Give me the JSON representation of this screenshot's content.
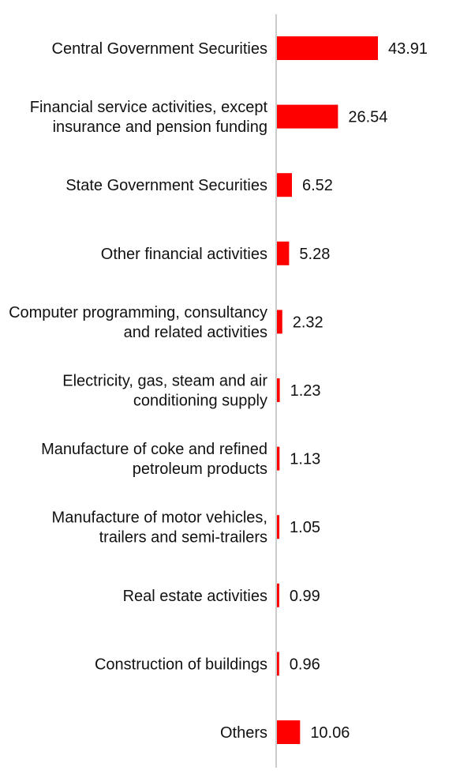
{
  "chart_data": {
    "type": "bar",
    "orientation": "horizontal",
    "categories": [
      [
        "Central Government Securities"
      ],
      [
        "Financial service activities, except",
        "insurance and pension funding"
      ],
      [
        "State Government Securities"
      ],
      [
        "Other financial activities"
      ],
      [
        "Computer programming, consultancy",
        "and related activities"
      ],
      [
        "Electricity, gas, steam and air",
        "conditioning supply"
      ],
      [
        "Manufacture of coke and refined",
        "petroleum products"
      ],
      [
        "Manufacture of motor vehicles,",
        "trailers and semi-trailers"
      ],
      [
        "Real estate activities"
      ],
      [
        "Construction of buildings"
      ],
      [
        "Others"
      ]
    ],
    "values": [
      43.91,
      26.54,
      6.52,
      5.28,
      2.32,
      1.23,
      1.13,
      1.05,
      0.99,
      0.96,
      10.06
    ],
    "value_labels": [
      "43.91",
      "26.54",
      "6.52",
      "5.28",
      "2.32",
      "1.23",
      "1.13",
      "1.05",
      "0.99",
      "0.96",
      "10.06"
    ],
    "xlim": [
      0,
      43.91
    ],
    "grid": false,
    "legend": "none",
    "colors": {
      "bar": "#ff0000",
      "axis": "#cccccc",
      "text": "#111111"
    }
  }
}
